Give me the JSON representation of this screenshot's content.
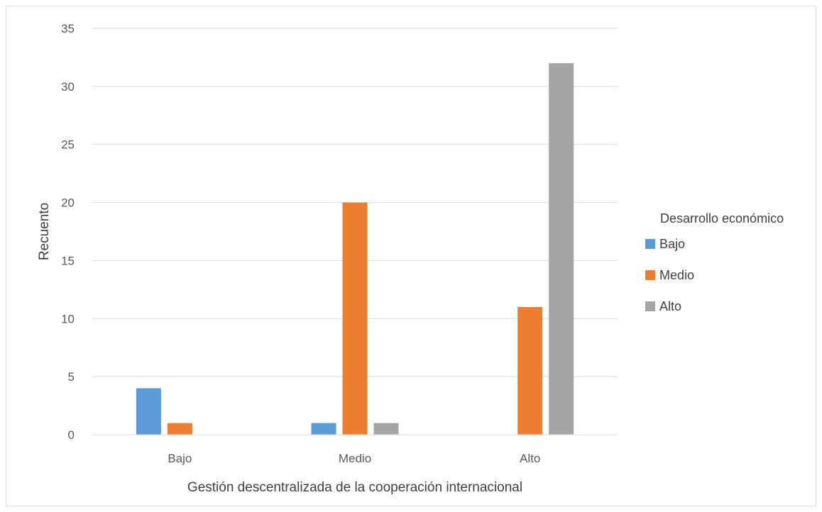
{
  "chart_data": {
    "type": "bar",
    "title": "",
    "xlabel": "Gestión descentralizada de la cooperación internacional",
    "ylabel": "Recuento",
    "categories": [
      "Bajo",
      "Medio",
      "Alto"
    ],
    "ylim": [
      0,
      35
    ],
    "yticks": [
      0,
      5,
      10,
      15,
      20,
      25,
      30,
      35
    ],
    "grid": true,
    "legend": {
      "title": "Desarrollo económico",
      "placement": "right"
    },
    "series": [
      {
        "name": "Bajo",
        "color": "#5b9bd5",
        "values": [
          4,
          1,
          0
        ]
      },
      {
        "name": "Medio",
        "color": "#ed7d31",
        "values": [
          1,
          20,
          11
        ]
      },
      {
        "name": "Alto",
        "color": "#a5a5a5",
        "values": [
          0,
          1,
          32
        ]
      }
    ]
  }
}
